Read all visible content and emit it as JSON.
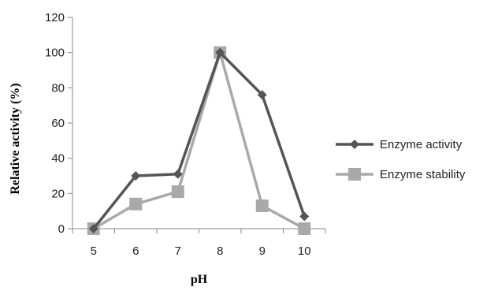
{
  "chart_data": {
    "type": "line",
    "categories": [
      "5",
      "6",
      "7",
      "8",
      "9",
      "10"
    ],
    "xlabel": "pH",
    "ylabel": "Relative activity (%)",
    "ylim": [
      0,
      120
    ],
    "y_ticks": [
      "0",
      "20",
      "40",
      "60",
      "80",
      "100",
      "120"
    ],
    "grid": false,
    "legend_position": "right",
    "series": [
      {
        "name": "Enzyme activity",
        "values": [
          0,
          30,
          31,
          100,
          76,
          7
        ],
        "color": "#555555",
        "marker": "diamond"
      },
      {
        "name": "Enzyme stability",
        "values": [
          0,
          14,
          21,
          100,
          13,
          0
        ],
        "color": "#a9a9a9",
        "marker": "square"
      }
    ]
  }
}
